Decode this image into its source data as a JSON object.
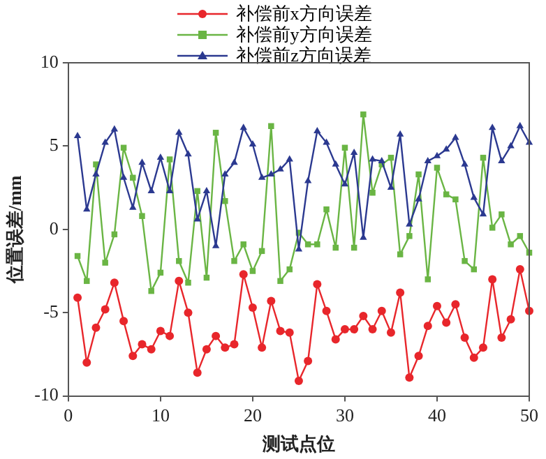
{
  "chart_data": {
    "type": "line",
    "xlabel": "测试点位",
    "ylabel": "位置误差/mm",
    "x": [
      1,
      2,
      3,
      4,
      5,
      6,
      7,
      8,
      9,
      10,
      11,
      12,
      13,
      14,
      15,
      16,
      17,
      18,
      19,
      20,
      21,
      22,
      23,
      24,
      25,
      26,
      27,
      28,
      29,
      30,
      31,
      32,
      33,
      34,
      35,
      36,
      37,
      38,
      39,
      40,
      41,
      42,
      43,
      44,
      45,
      46,
      47,
      48,
      49,
      50
    ],
    "series": [
      {
        "name": "补偿前x方向误差",
        "color": "#e8262b",
        "marker": "circle",
        "values": [
          -4.1,
          -8.0,
          -5.9,
          -4.8,
          -3.2,
          -5.5,
          -7.6,
          -6.9,
          -7.2,
          -6.1,
          -6.4,
          -3.1,
          -5.0,
          -8.6,
          -7.2,
          -6.4,
          -7.1,
          -6.9,
          -2.7,
          -4.7,
          -7.1,
          -4.3,
          -6.1,
          -6.2,
          -9.1,
          -7.9,
          -3.3,
          -4.9,
          -6.6,
          -6.0,
          -6.0,
          -5.2,
          -6.0,
          -4.9,
          -6.2,
          -3.8,
          -8.9,
          -7.6,
          -5.8,
          -4.6,
          -5.6,
          -4.5,
          -6.5,
          -7.7,
          -7.1,
          -3.0,
          -6.5,
          -5.4,
          -2.4,
          -4.9
        ]
      },
      {
        "name": "补偿前y方向误差",
        "color": "#6ab544",
        "marker": "square",
        "values": [
          -1.6,
          -3.1,
          3.9,
          -2.0,
          -0.3,
          4.9,
          3.1,
          0.8,
          -3.7,
          -2.6,
          4.2,
          -1.9,
          -3.2,
          2.3,
          -2.9,
          5.8,
          1.7,
          -1.9,
          -0.9,
          -2.5,
          -1.3,
          6.2,
          -3.1,
          -2.4,
          -0.2,
          -0.9,
          -0.9,
          1.2,
          -1.1,
          4.9,
          -1.1,
          6.9,
          2.2,
          3.9,
          4.3,
          -1.5,
          -0.4,
          3.3,
          -3.0,
          3.7,
          2.1,
          1.8,
          -1.9,
          -2.4,
          4.3,
          0.1,
          0.9,
          -0.9,
          -0.4,
          -1.4
        ]
      },
      {
        "name": "补偿前z方向误差",
        "color": "#2b3990",
        "marker": "triangle",
        "values": [
          5.6,
          1.2,
          3.3,
          5.2,
          6.0,
          3.1,
          1.3,
          4.0,
          2.3,
          4.3,
          2.3,
          5.8,
          4.5,
          0.6,
          2.3,
          -1.0,
          3.3,
          4.0,
          6.1,
          5.1,
          3.1,
          3.3,
          3.6,
          4.2,
          -1.2,
          2.9,
          5.9,
          5.2,
          3.9,
          2.7,
          4.6,
          -0.5,
          4.2,
          4.1,
          2.5,
          5.7,
          0.3,
          1.8,
          4.1,
          4.4,
          4.8,
          5.5,
          3.9,
          1.9,
          0.9,
          6.1,
          4.1,
          5.0,
          6.2,
          5.2
        ]
      }
    ],
    "xlim": [
      0,
      50
    ],
    "xticks": [
      0,
      10,
      20,
      30,
      40,
      50
    ],
    "ylim": [
      -10,
      10
    ],
    "yticks": [
      -10,
      -5,
      0,
      5,
      10
    ],
    "grid": false,
    "legend": "top",
    "line_style": "solid"
  }
}
